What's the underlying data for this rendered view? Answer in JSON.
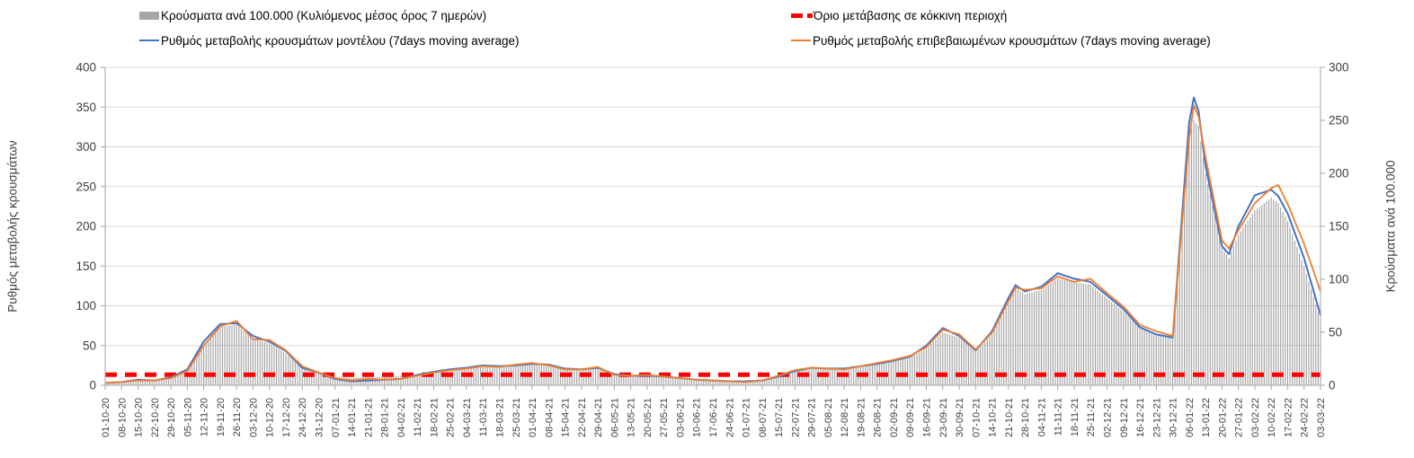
{
  "legend": {
    "items": [
      {
        "id": "bars",
        "label": "Κρούσματα ανά 100.000 (Κυλιόμενος μέσος όρος 7 ημερών)",
        "marker": "gray-bar-swatch",
        "color": "#a6a6a6"
      },
      {
        "id": "threshold",
        "label": "Όριο μετάβασης σε κόκκινη περιοχή",
        "marker": "red-dashed-line",
        "color": "#ff0000"
      },
      {
        "id": "model",
        "label": "Ρυθμός μεταβολής κρουσμάτων μοντέλου (7days moving average)",
        "marker": "blue-line",
        "color": "#4472c4"
      },
      {
        "id": "confirmed",
        "label": "Ρυθμός μεταβολής επιβεβαιωμένων κρουσμάτων (7days moving average)",
        "marker": "orange-line",
        "color": "#ed7d31"
      }
    ]
  },
  "colors": {
    "model_line": "#4472c4",
    "confirmed_line": "#ed7d31",
    "threshold_line": "#ff0000",
    "bars": "#a3a3a3",
    "gridline": "#d9d9d9",
    "axis_line": "#a6a6a6",
    "y_tick_text": "#3f3f3f",
    "x_tick_text": "#404040"
  },
  "chart_data": {
    "type": "combo_bar_line",
    "grid": true,
    "legend_position": "top",
    "total_days": 518,
    "days_per_tick": 7,
    "axes": {
      "left": {
        "title": "Ρυθμός μεταβολής κρουσμάτων",
        "min": 0,
        "max": 400,
        "tick_step": 50,
        "tick_labels": [
          "0",
          "50",
          "100",
          "150",
          "200",
          "250",
          "300",
          "350",
          "400"
        ]
      },
      "right": {
        "title": "Κρούσματα ανά 100.000",
        "min": 0,
        "max": 300,
        "tick_step": 50,
        "tick_labels": [
          "0",
          "50",
          "100",
          "150",
          "200",
          "250",
          "300"
        ]
      }
    },
    "x_tick_labels": [
      "01-10-20",
      "08-10-20",
      "15-10-20",
      "22-10-20",
      "29-10-20",
      "05-11-20",
      "12-11-20",
      "19-11-20",
      "26-11-20",
      "03-12-20",
      "10-12-20",
      "17-12-20",
      "24-12-20",
      "31-12-20",
      "07-01-21",
      "14-01-21",
      "21-01-21",
      "28-01-21",
      "04-02-21",
      "11-02-21",
      "18-02-21",
      "25-02-21",
      "04-03-21",
      "11-03-21",
      "18-03-21",
      "25-03-21",
      "01-04-21",
      "08-04-21",
      "15-04-21",
      "22-04-21",
      "29-04-21",
      "06-05-21",
      "13-05-21",
      "20-05-21",
      "27-05-21",
      "03-06-21",
      "10-06-21",
      "17-06-21",
      "24-06-21",
      "01-07-21",
      "08-07-21",
      "15-07-21",
      "22-07-21",
      "29-07-21",
      "05-08-21",
      "12-08-21",
      "19-08-21",
      "26-08-21",
      "02-09-21",
      "09-09-21",
      "16-09-21",
      "23-09-21",
      "30-09-21",
      "07-10-21",
      "14-10-21",
      "21-10-21",
      "28-10-21",
      "04-11-21",
      "11-11-21",
      "18-11-21",
      "25-11-21",
      "02-12-21",
      "09-12-21",
      "16-12-21",
      "23-12-21",
      "30-12-21",
      "06-01-22",
      "13-01-22",
      "20-01-22",
      "27-01-22",
      "03-02-22",
      "10-02-22",
      "17-02-22",
      "24-02-22",
      "03-03-22"
    ],
    "anchor_days": [
      0,
      7,
      14,
      21,
      28,
      35,
      42,
      49,
      56,
      63,
      70,
      77,
      84,
      91,
      98,
      105,
      112,
      119,
      126,
      133,
      140,
      147,
      154,
      161,
      168,
      175,
      182,
      189,
      196,
      203,
      210,
      217,
      224,
      231,
      238,
      245,
      252,
      259,
      266,
      273,
      280,
      287,
      294,
      301,
      308,
      315,
      322,
      329,
      336,
      343,
      350,
      357,
      364,
      371,
      378,
      385,
      388,
      392,
      399,
      406,
      413,
      420,
      427,
      434,
      441,
      448,
      455,
      462,
      464,
      466,
      469,
      476,
      479,
      483,
      490,
      497,
      500,
      504,
      511,
      518
    ],
    "series": [
      {
        "name": "Κρούσματα ανά 100.000 (Κυλιόμενος μέσος όρος 7 ημερών)",
        "type": "bar",
        "axis": "right",
        "color": "#a3a3a3",
        "values": [
          2,
          3,
          4,
          4,
          6,
          13,
          38,
          55,
          57,
          44,
          40,
          30,
          16,
          12,
          8,
          7,
          8,
          8,
          9,
          10,
          12,
          14,
          16,
          18,
          17,
          19,
          20,
          19,
          16,
          15,
          16,
          10,
          9,
          9,
          8,
          7,
          5,
          4,
          4,
          3,
          4,
          8,
          13,
          16,
          15,
          15,
          17,
          20,
          23,
          26,
          35,
          50,
          45,
          32,
          48,
          78,
          92,
          86,
          90,
          101,
          97,
          95,
          82,
          70,
          54,
          47,
          44,
          235,
          250,
          245,
          200,
          130,
          120,
          142,
          165,
          177,
          172,
          155,
          112,
          62
        ]
      },
      {
        "name": "Ρυθμός μεταβολής κρουσμάτων μοντέλου (7days moving average)",
        "type": "line",
        "axis": "left",
        "color": "#4472c4",
        "values": [
          3,
          4,
          7,
          6,
          10,
          20,
          55,
          77,
          78,
          62,
          55,
          43,
          22,
          16,
          8,
          5,
          6,
          7,
          8,
          13,
          17,
          20,
          22,
          25,
          24,
          25,
          27,
          26,
          21,
          20,
          22,
          14,
          12,
          12,
          11,
          9,
          7,
          6,
          5,
          5,
          6,
          11,
          18,
          22,
          21,
          21,
          24,
          27,
          31,
          36,
          50,
          72,
          62,
          44,
          68,
          110,
          126,
          118,
          124,
          141,
          134,
          130,
          113,
          96,
          73,
          64,
          60,
          330,
          362,
          345,
          276,
          175,
          165,
          200,
          239,
          246,
          238,
          216,
          160,
          88
        ]
      },
      {
        "name": "Ρυθμός μεταβολής επιβεβαιωμένων κρουσμάτων (7days moving average)",
        "type": "line",
        "axis": "left",
        "color": "#ed7d31",
        "values": [
          3,
          4,
          6,
          6,
          9,
          18,
          50,
          74,
          81,
          58,
          57,
          44,
          24,
          16,
          9,
          6,
          8,
          7,
          8,
          12,
          16,
          19,
          21,
          24,
          23,
          26,
          28,
          25,
          20,
          20,
          23,
          13,
          12,
          13,
          11,
          9,
          7,
          6,
          5,
          4,
          6,
          12,
          19,
          22,
          21,
          20,
          24,
          28,
          32,
          37,
          48,
          70,
          64,
          45,
          66,
          106,
          123,
          120,
          122,
          137,
          130,
          134,
          116,
          99,
          76,
          68,
          62,
          310,
          352,
          338,
          287,
          182,
          172,
          195,
          229,
          248,
          252,
          228,
          178,
          118
        ]
      },
      {
        "name": "Όριο μετάβασης σε κόκκινη περιοχή",
        "type": "threshold",
        "axis": "right",
        "color": "#ff0000",
        "value": 10
      }
    ]
  }
}
